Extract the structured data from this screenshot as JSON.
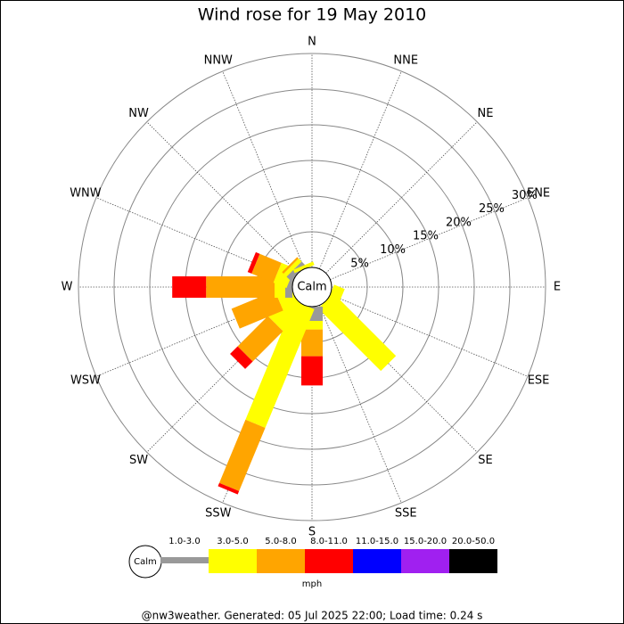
{
  "chart_data": {
    "type": "windrose",
    "title": "Wind rose for 19 May 2010",
    "categories": [
      "N",
      "NNE",
      "NE",
      "ENE",
      "E",
      "ESE",
      "SE",
      "SSE",
      "S",
      "SSW",
      "SW",
      "WSW",
      "W",
      "WNW",
      "NW",
      "NNW"
    ],
    "calm_label": "Calm",
    "rlim": [
      0,
      30
    ],
    "rticks": [
      {
        "value": 5,
        "label": "5%"
      },
      {
        "value": 10,
        "label": "10%"
      },
      {
        "value": 15,
        "label": "15%"
      },
      {
        "value": 20,
        "label": "20%"
      },
      {
        "value": 25,
        "label": "25%"
      },
      {
        "value": 30,
        "label": "30%"
      }
    ],
    "units": "mph",
    "series": [
      {
        "name": "1.0-3.0",
        "color": "#999999",
        "values": [
          0,
          0,
          0,
          0,
          0,
          0,
          0,
          0,
          2,
          0,
          0,
          0,
          1,
          0.5,
          0.8,
          0
        ]
      },
      {
        "name": "3.0-5.0",
        "color": "#ffff00",
        "values": [
          0,
          0,
          0,
          0,
          0,
          1.6,
          12.4,
          0,
          1.2,
          18,
          4.5,
          2.25,
          1.5,
          2,
          0.6,
          0.5
        ]
      },
      {
        "name": "5.0-8.0",
        "color": "#ffa500",
        "values": [
          0,
          0,
          0,
          0,
          0,
          0,
          0,
          0,
          3.75,
          9.6,
          6,
          6.6,
          9.6,
          3.3,
          0.3,
          0
        ]
      },
      {
        "name": "8.0-11.0",
        "color": "#ff0000",
        "values": [
          0,
          0,
          0,
          0,
          0,
          0,
          0,
          0,
          4.1,
          0.5,
          1.5,
          0,
          4.75,
          0.6,
          0,
          0
        ]
      },
      {
        "name": "11.0-15.0",
        "color": "#0000ff",
        "values": [
          0,
          0,
          0,
          0,
          0,
          0,
          0,
          0,
          0,
          0,
          0,
          0,
          0,
          0,
          0,
          0
        ]
      },
      {
        "name": "15.0-20.0",
        "color": "#a020f0",
        "values": [
          0,
          0,
          0,
          0,
          0,
          0,
          0,
          0,
          0,
          0,
          0,
          0,
          0,
          0,
          0,
          0
        ]
      },
      {
        "name": "20.0-50.0",
        "color": "#000000",
        "values": [
          0,
          0,
          0,
          0,
          0,
          0,
          0,
          0,
          0,
          0,
          0,
          0,
          0,
          0,
          0,
          0
        ]
      }
    ],
    "footer": "@nw3weather. Generated: 05 Jul 2025 22:00; Load time: 0.24 s"
  }
}
